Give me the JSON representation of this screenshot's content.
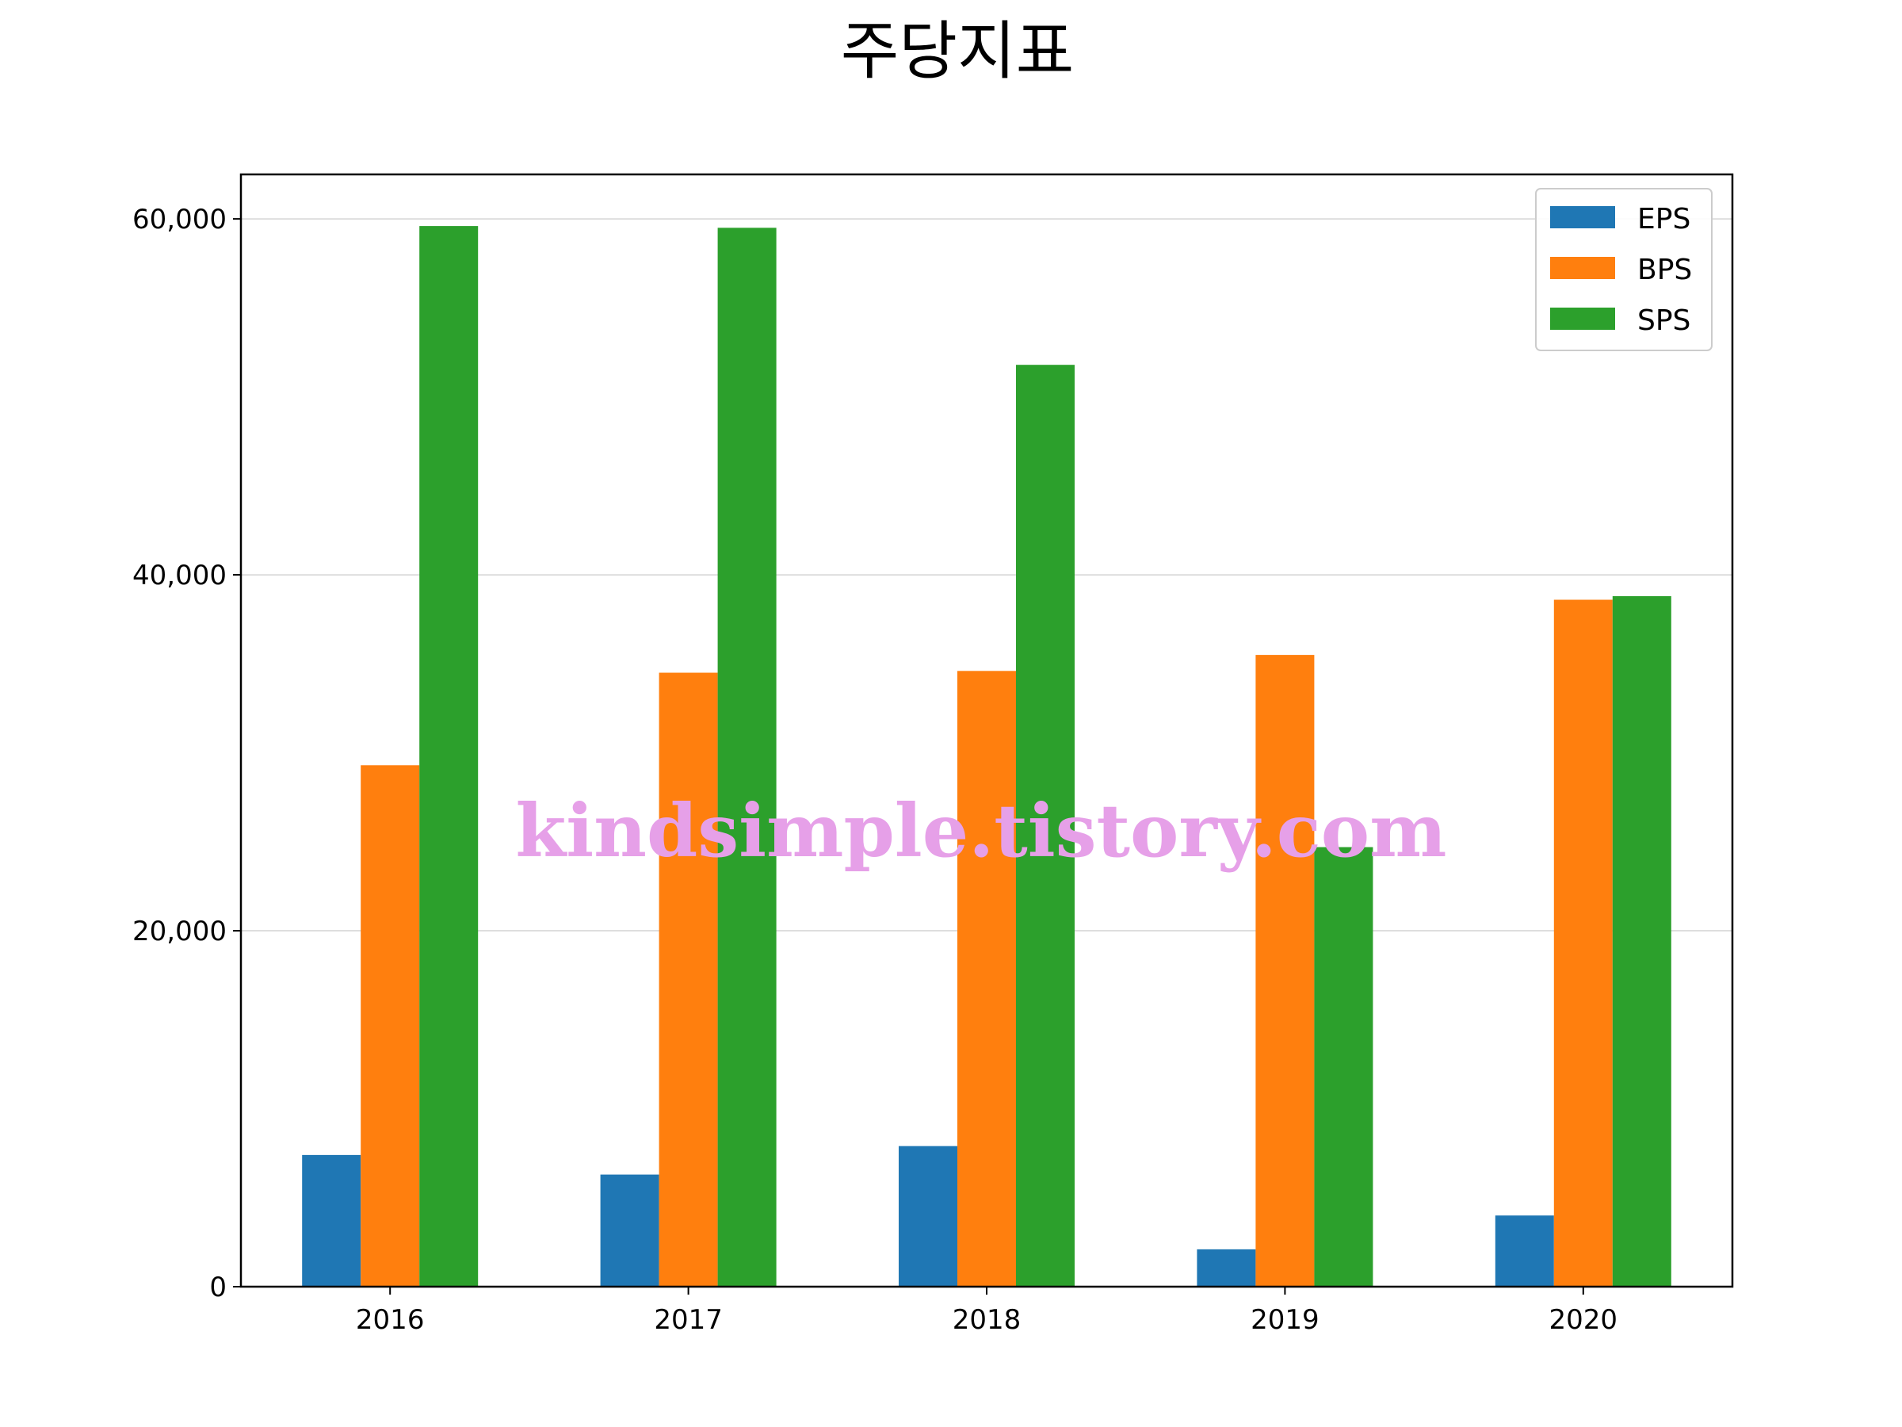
{
  "chart_data": {
    "type": "bar",
    "title": "주당지표",
    "xlabel": "",
    "ylabel": "",
    "categories": [
      "2016",
      "2017",
      "2018",
      "2019",
      "2020"
    ],
    "series": [
      {
        "name": "EPS",
        "color": "#1f77b4",
        "values": [
          7400,
          6300,
          7900,
          2100,
          4000
        ]
      },
      {
        "name": "BPS",
        "color": "#ff7f0e",
        "values": [
          29300,
          34500,
          34600,
          35500,
          38600
        ]
      },
      {
        "name": "SPS",
        "color": "#2ca02c",
        "values": [
          59600,
          59500,
          51800,
          24700,
          38800
        ]
      }
    ],
    "ylim": [
      0,
      62500
    ],
    "yticks": [
      0,
      20000,
      40000,
      60000
    ],
    "ytick_labels": [
      "0",
      "20,000",
      "40,000",
      "60,000"
    ],
    "grid": "y-major",
    "legend_position": "top-right"
  },
  "watermark": {
    "text": "kindsimple.tistory.com",
    "color": "#e6a0e8"
  }
}
